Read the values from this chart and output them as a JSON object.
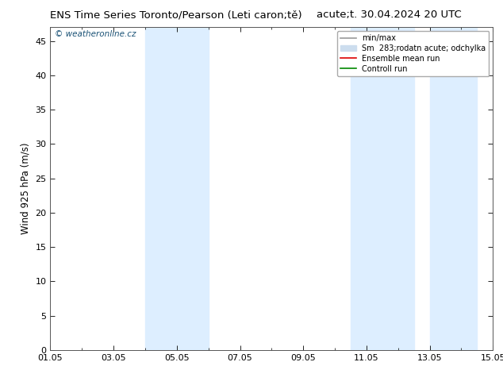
{
  "title_left": "ENS Time Series Toronto/Pearson (Leti caron;tě)",
  "title_right": "acute;t. 30.04.2024 20 UTC",
  "ylabel": "Wind 925 hPa (m/s)",
  "ylim": [
    0,
    47
  ],
  "yticks": [
    0,
    5,
    10,
    15,
    20,
    25,
    30,
    35,
    40,
    45
  ],
  "xlim_start": 0,
  "xlim_end": 14,
  "xtick_labels": [
    "01.05",
    "03.05",
    "05.05",
    "07.05",
    "09.05",
    "11.05",
    "13.05",
    "15.05"
  ],
  "xtick_positions": [
    0,
    2,
    4,
    6,
    8,
    10,
    12,
    14
  ],
  "shaded_bands": [
    {
      "x_start": 3.0,
      "x_end": 5.0,
      "color": "#ddeeff"
    },
    {
      "x_start": 9.5,
      "x_end": 11.5,
      "color": "#ddeeff"
    },
    {
      "x_start": 12.0,
      "x_end": 13.5,
      "color": "#ddeeff"
    }
  ],
  "watermark": "© weatheronline.cz",
  "watermark_color": "#1a5276",
  "legend_items": [
    {
      "label": "min/max",
      "color": "#999999",
      "lw": 1.2
    },
    {
      "label": "Sm  283;rodatn acute; odchylka",
      "color": "#ccddee",
      "lw": 8
    },
    {
      "label": "Ensemble mean run",
      "color": "#dd0000",
      "lw": 1.2
    },
    {
      "label": "Controll run",
      "color": "#008800",
      "lw": 1.2
    }
  ],
  "background_color": "#ffffff",
  "plot_bg_color": "#ffffff",
  "title_fontsize": 9.5,
  "axis_label_fontsize": 8.5,
  "tick_fontsize": 8
}
